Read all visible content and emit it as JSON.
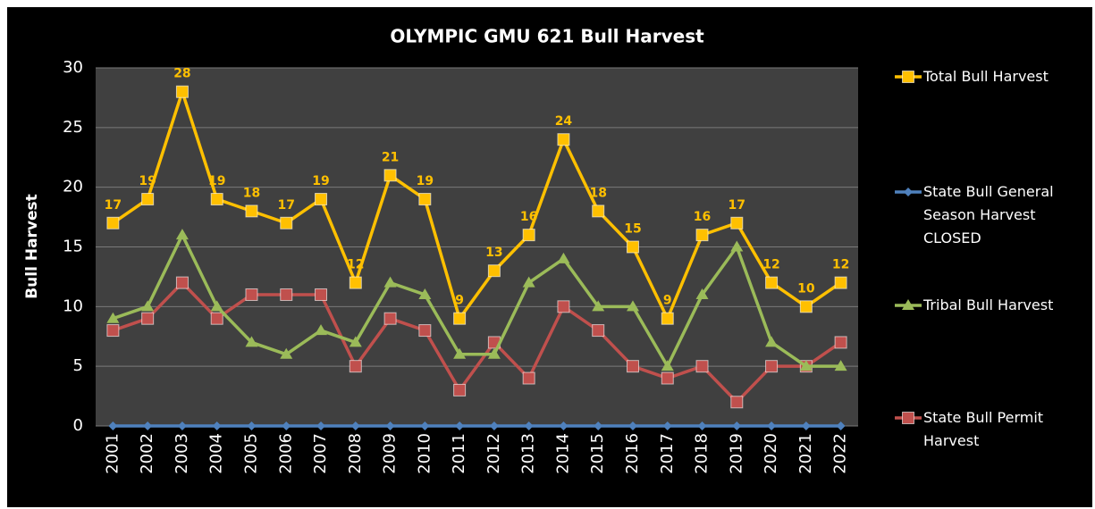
{
  "chart_data": {
    "type": "line",
    "title": "OLYMPIC  GMU 621 Bull Harvest",
    "y_label": "Bull Harvest",
    "categories": [
      "2001",
      "2002",
      "2003",
      "2004",
      "2005",
      "2006",
      "2007",
      "2008",
      "2009",
      "2010",
      "2011",
      "2012",
      "2013",
      "2014",
      "2015",
      "2016",
      "2017",
      "2018",
      "2019",
      "2020",
      "2021",
      "2022"
    ],
    "series": [
      {
        "name": "Total Bull Harvest",
        "color": "#ffc000",
        "marker": "square",
        "data_labels": true,
        "values": [
          17,
          19,
          28,
          19,
          18,
          17,
          19,
          12,
          21,
          19,
          9,
          13,
          16,
          24,
          18,
          15,
          9,
          16,
          17,
          12,
          10,
          12
        ]
      },
      {
        "name": "State Bull General Season Harvest CLOSED",
        "color": "#4f81bd",
        "marker": "diamond",
        "values": [
          0,
          0,
          0,
          0,
          0,
          0,
          0,
          0,
          0,
          0,
          0,
          0,
          0,
          0,
          0,
          0,
          0,
          0,
          0,
          0,
          0,
          0
        ]
      },
      {
        "name": "Tribal Bull Harvest",
        "color": "#9bbb59",
        "marker": "triangle",
        "values": [
          9,
          10,
          16,
          10,
          7,
          6,
          8,
          7,
          12,
          11,
          6,
          6,
          12,
          14,
          10,
          10,
          5,
          11,
          15,
          7,
          5,
          5
        ]
      },
      {
        "name": "State Bull Permit Harvest",
        "color": "#c0504d",
        "marker": "square",
        "values": [
          8,
          9,
          12,
          9,
          11,
          11,
          11,
          5,
          9,
          8,
          3,
          7,
          4,
          10,
          8,
          5,
          4,
          5,
          2,
          5,
          5,
          7
        ]
      }
    ],
    "ylim": [
      0,
      30
    ],
    "yticks": [
      0,
      5,
      10,
      15,
      20,
      25,
      30
    ],
    "grid": true,
    "legend": "right"
  }
}
